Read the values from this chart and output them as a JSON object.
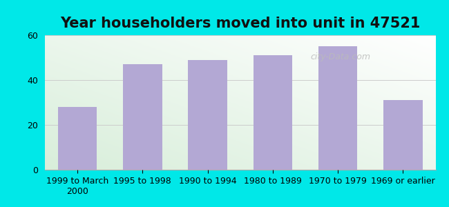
{
  "title": "Year householders moved into unit in 47521",
  "categories": [
    "1999 to March\n2000",
    "1995 to 1998",
    "1990 to 1994",
    "1980 to 1989",
    "1970 to 1979",
    "1969 or earlier"
  ],
  "values": [
    28,
    47,
    49,
    51,
    55,
    31
  ],
  "bar_color": "#b3a8d4",
  "ylim": [
    0,
    60
  ],
  "yticks": [
    0,
    20,
    40,
    60
  ],
  "outer_bg": "#00e8e8",
  "plot_bg_green": "#d8eeda",
  "plot_bg_white": "#ffffff",
  "title_fontsize": 15,
  "tick_fontsize": 9,
  "watermark": "city-Data.com",
  "watermark2": "●ity-Data.com"
}
